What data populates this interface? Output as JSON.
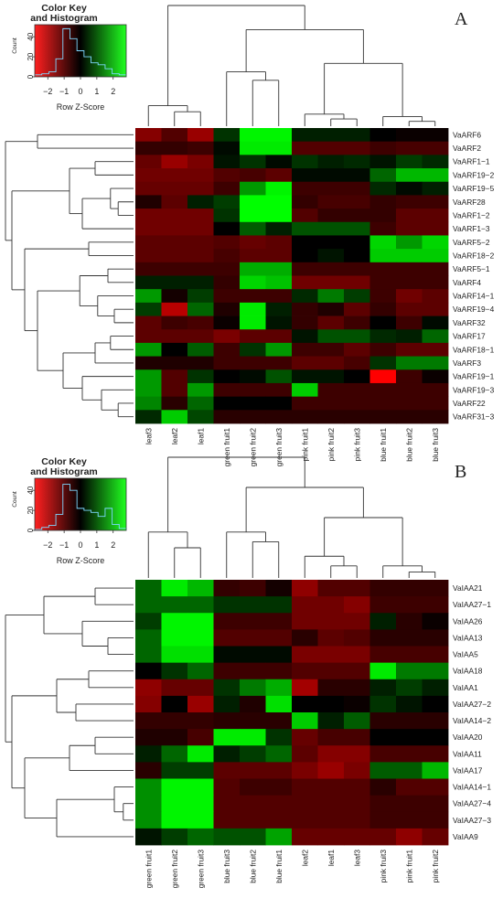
{
  "colors": {
    "low": "#ff0000",
    "mid": "#000000",
    "high": "#00ff00"
  },
  "chart_data": [
    {
      "type": "heatmap",
      "panel": "A",
      "key": {
        "title_line1": "Color Key",
        "title_line2": "and Histogram",
        "ylabel": "Count",
        "xlabel": "Row Z-Score",
        "x_ticks": [
          "−2",
          "−1",
          "0",
          "1",
          "2"
        ],
        "x_tick_values": [
          -2,
          -1,
          0,
          1,
          2
        ],
        "y_ticks": [
          "0",
          "20",
          "40"
        ],
        "y_tick_values": [
          0,
          20,
          40
        ],
        "xlim": [
          -2.8,
          2.8
        ],
        "ylim": [
          0,
          52
        ],
        "histogram": [
          2,
          3,
          5,
          18,
          48,
          38,
          26,
          20,
          14,
          12,
          8,
          3,
          2
        ]
      },
      "columns": [
        "leaf3",
        "leaf2",
        "leaf1",
        "green fruit1",
        "green fruit2",
        "green fruit3",
        "pink fruit1",
        "pink fruit2",
        "pink fruit3",
        "blue fruit1",
        "blue fruit2",
        "blue fruit3"
      ],
      "rows": [
        "VaARF6",
        "VaARF2",
        "VaARF1−1",
        "VaARF19−2",
        "VaARF19−5",
        "VaARF28",
        "VaARF1−2",
        "VaARF1−3",
        "VaARF5−2",
        "VaARF18−2",
        "VaARF5−1",
        "VaARF4",
        "VaARF14−1",
        "VaARF19−4",
        "VaARF32",
        "VaARF17",
        "VaARF18−1",
        "VaARF3",
        "VaARF19−1",
        "VaARF19−3",
        "VaARF22",
        "VaARF31−3"
      ],
      "values": [
        [
          -1.3,
          -0.8,
          -1.5,
          0.5,
          2.4,
          2.4,
          0.3,
          0.3,
          0.3,
          0.0,
          -0.1,
          -0.1
        ],
        [
          -0.5,
          -0.5,
          -0.6,
          0.1,
          2.3,
          2.3,
          -0.8,
          -0.8,
          -0.8,
          -0.6,
          -0.7,
          -0.7
        ],
        [
          -1.0,
          -1.5,
          -1.2,
          0.2,
          0.5,
          0.1,
          0.5,
          0.3,
          0.4,
          0.2,
          0.6,
          0.4
        ],
        [
          -1.1,
          -1.1,
          -1.1,
          -0.8,
          -0.7,
          -0.9,
          0.1,
          0.1,
          0.1,
          1.0,
          1.8,
          1.8
        ],
        [
          -1.0,
          -1.0,
          -1.0,
          -0.6,
          1.5,
          2.4,
          -0.6,
          -0.6,
          -0.6,
          0.4,
          0.1,
          0.3
        ],
        [
          -0.3,
          -0.9,
          0.3,
          0.6,
          2.5,
          2.5,
          -0.5,
          -0.7,
          -0.7,
          -0.5,
          -0.6,
          -0.6
        ],
        [
          -1.1,
          -1.1,
          -1.1,
          0.5,
          2.5,
          2.5,
          -0.8,
          -0.5,
          -0.5,
          -0.5,
          -0.9,
          -0.9
        ],
        [
          -1.1,
          -1.1,
          -1.1,
          0.0,
          0.9,
          0.3,
          0.8,
          0.8,
          0.8,
          -0.6,
          -0.9,
          -0.9
        ],
        [
          -0.9,
          -0.9,
          -0.9,
          -0.8,
          -1.0,
          -0.9,
          0.0,
          0.0,
          0.0,
          2.1,
          1.5,
          2.1
        ],
        [
          -0.9,
          -0.9,
          -0.9,
          -0.7,
          -0.9,
          -0.9,
          0.0,
          0.2,
          0.0,
          2.0,
          2.0,
          2.0
        ],
        [
          -0.6,
          -0.6,
          -0.6,
          -0.6,
          1.7,
          1.7,
          -0.6,
          -0.6,
          -0.6,
          -0.6,
          -0.6,
          -0.6
        ],
        [
          0.3,
          0.3,
          0.3,
          -0.5,
          2.1,
          1.9,
          -1.1,
          -1.1,
          -1.1,
          -0.6,
          -0.6,
          -0.6
        ],
        [
          1.5,
          -0.2,
          0.6,
          -0.6,
          -0.6,
          -0.6,
          0.4,
          1.2,
          0.6,
          -0.6,
          -1.1,
          -0.9
        ],
        [
          0.6,
          -1.8,
          1.0,
          -0.3,
          2.3,
          0.3,
          -0.5,
          -0.3,
          -0.9,
          -0.5,
          -0.9,
          -0.9
        ],
        [
          -0.9,
          -0.6,
          -0.7,
          -0.1,
          2.3,
          0.2,
          -0.5,
          -0.9,
          -0.6,
          0.0,
          -0.6,
          0.1
        ],
        [
          -0.9,
          -0.9,
          -0.9,
          -1.2,
          -0.9,
          -0.9,
          0.2,
          0.8,
          0.8,
          0.4,
          0.3,
          1.0
        ],
        [
          1.5,
          0.0,
          0.9,
          -0.6,
          0.5,
          1.5,
          -0.6,
          -0.6,
          -0.9,
          -0.6,
          -0.9,
          -0.9
        ],
        [
          -0.3,
          -0.3,
          -0.3,
          -0.6,
          -0.6,
          -0.6,
          -0.9,
          -0.9,
          -0.7,
          0.5,
          1.2,
          1.2
        ],
        [
          1.5,
          -0.8,
          0.5,
          0.0,
          0.1,
          0.8,
          0.2,
          0.2,
          0.0,
          -2.6,
          -0.6,
          -0.1
        ],
        [
          1.5,
          -0.8,
          1.5,
          -0.6,
          -0.6,
          -0.6,
          2.0,
          -0.6,
          -0.6,
          -0.6,
          -0.6,
          -0.6
        ],
        [
          1.3,
          -0.4,
          1.0,
          0.0,
          0.0,
          0.0,
          -0.6,
          -0.6,
          -0.6,
          -0.6,
          -0.6,
          -0.6
        ],
        [
          0.4,
          2.0,
          0.7,
          -0.4,
          -0.4,
          -0.4,
          -0.4,
          -0.4,
          -0.4,
          -0.4,
          -0.4,
          -0.4
        ]
      ]
    },
    {
      "type": "heatmap",
      "panel": "B",
      "key": {
        "title_line1": "Color Key",
        "title_line2": "and Histogram",
        "ylabel": "Count",
        "xlabel": "Row Z-Score",
        "x_ticks": [
          "−2",
          "−1",
          "0",
          "1",
          "2"
        ],
        "x_tick_values": [
          -2,
          -1,
          0,
          1,
          2
        ],
        "y_ticks": [
          "0",
          "20",
          "40"
        ],
        "y_tick_values": [
          0,
          20,
          40
        ],
        "xlim": [
          -2.8,
          2.8
        ],
        "ylim": [
          0,
          52
        ],
        "histogram": [
          1,
          3,
          5,
          16,
          46,
          40,
          22,
          20,
          18,
          14,
          22,
          6,
          2
        ]
      },
      "columns": [
        "green fruit1",
        "green fruit2",
        "green fruit3",
        "blue fruit3",
        "blue fruit2",
        "blue fruit1",
        "leaf2",
        "leaf1",
        "leaf3",
        "pink fruit3",
        "pink fruit1",
        "pink fruit2"
      ],
      "rows": [
        "VaIAA21",
        "VaIAA27−1",
        "VaIAA26",
        "VaIAA13",
        "VaIAA5",
        "VaIAA18",
        "VaIAA1",
        "VaIAA27−2",
        "VaIAA14−2",
        "VaIAA20",
        "VaIAA11",
        "VaIAA17",
        "VaIAA14−1",
        "VaIAA27−4",
        "VaIAA27−3",
        "VaIAA9"
      ],
      "values": [
        [
          1.0,
          2.3,
          1.8,
          -0.5,
          -0.6,
          -0.2,
          -1.4,
          -0.8,
          -0.8,
          -0.5,
          -0.5,
          -0.5
        ],
        [
          1.0,
          1.0,
          1.0,
          0.5,
          0.5,
          0.5,
          -1.1,
          -1.1,
          -1.3,
          -0.6,
          -0.6,
          -0.6
        ],
        [
          0.6,
          2.4,
          2.4,
          -0.6,
          -0.6,
          -0.6,
          -1.1,
          -1.1,
          -1.1,
          0.3,
          -0.4,
          -0.1
        ],
        [
          1.0,
          2.4,
          2.4,
          -0.8,
          -0.8,
          -0.8,
          -0.4,
          -0.9,
          -0.8,
          -0.4,
          -0.4,
          -0.4
        ],
        [
          1.0,
          2.2,
          2.2,
          0.1,
          0.1,
          0.1,
          -1.2,
          -1.2,
          -1.2,
          -0.7,
          -0.7,
          -0.7
        ],
        [
          0.0,
          0.5,
          1.0,
          -0.6,
          -0.6,
          -0.6,
          -0.8,
          -0.8,
          -0.8,
          2.3,
          1.2,
          1.2
        ],
        [
          -1.4,
          -1.0,
          -1.0,
          0.5,
          1.2,
          1.7,
          -1.6,
          -0.4,
          -0.4,
          0.3,
          0.6,
          0.3
        ],
        [
          -1.3,
          0.0,
          -1.5,
          0.3,
          -0.3,
          2.2,
          0.0,
          0.0,
          -0.1,
          0.5,
          0.2,
          0.0
        ],
        [
          -0.5,
          -0.5,
          -0.5,
          -0.4,
          -0.4,
          -0.4,
          2.0,
          0.3,
          0.9,
          -0.4,
          -0.4,
          -0.4
        ],
        [
          -0.3,
          -0.3,
          -0.7,
          2.3,
          2.3,
          0.5,
          -1.0,
          -0.7,
          -0.7,
          0.0,
          0.0,
          0.0
        ],
        [
          0.3,
          1.0,
          2.3,
          0.3,
          0.6,
          1.0,
          -0.9,
          -1.3,
          -1.3,
          -0.7,
          -0.7,
          -0.7
        ],
        [
          -0.4,
          0.6,
          0.6,
          -0.9,
          -0.9,
          -0.9,
          -1.2,
          -1.5,
          -1.2,
          0.9,
          0.9,
          1.8
        ],
        [
          1.4,
          2.4,
          2.4,
          -0.8,
          -0.6,
          -0.6,
          -0.8,
          -0.8,
          -0.8,
          -0.4,
          -0.8,
          -0.8
        ],
        [
          1.4,
          2.4,
          2.4,
          -0.8,
          -0.8,
          -0.8,
          -0.8,
          -0.8,
          -0.8,
          -0.6,
          -0.6,
          -0.6
        ],
        [
          1.4,
          2.4,
          2.4,
          -0.8,
          -0.8,
          -0.8,
          -0.8,
          -0.8,
          -0.8,
          -0.6,
          -0.6,
          -0.6
        ],
        [
          0.2,
          0.6,
          1.0,
          0.8,
          0.8,
          1.6,
          -1.0,
          -1.0,
          -1.0,
          -1.0,
          -1.4,
          -1.0
        ]
      ]
    }
  ]
}
